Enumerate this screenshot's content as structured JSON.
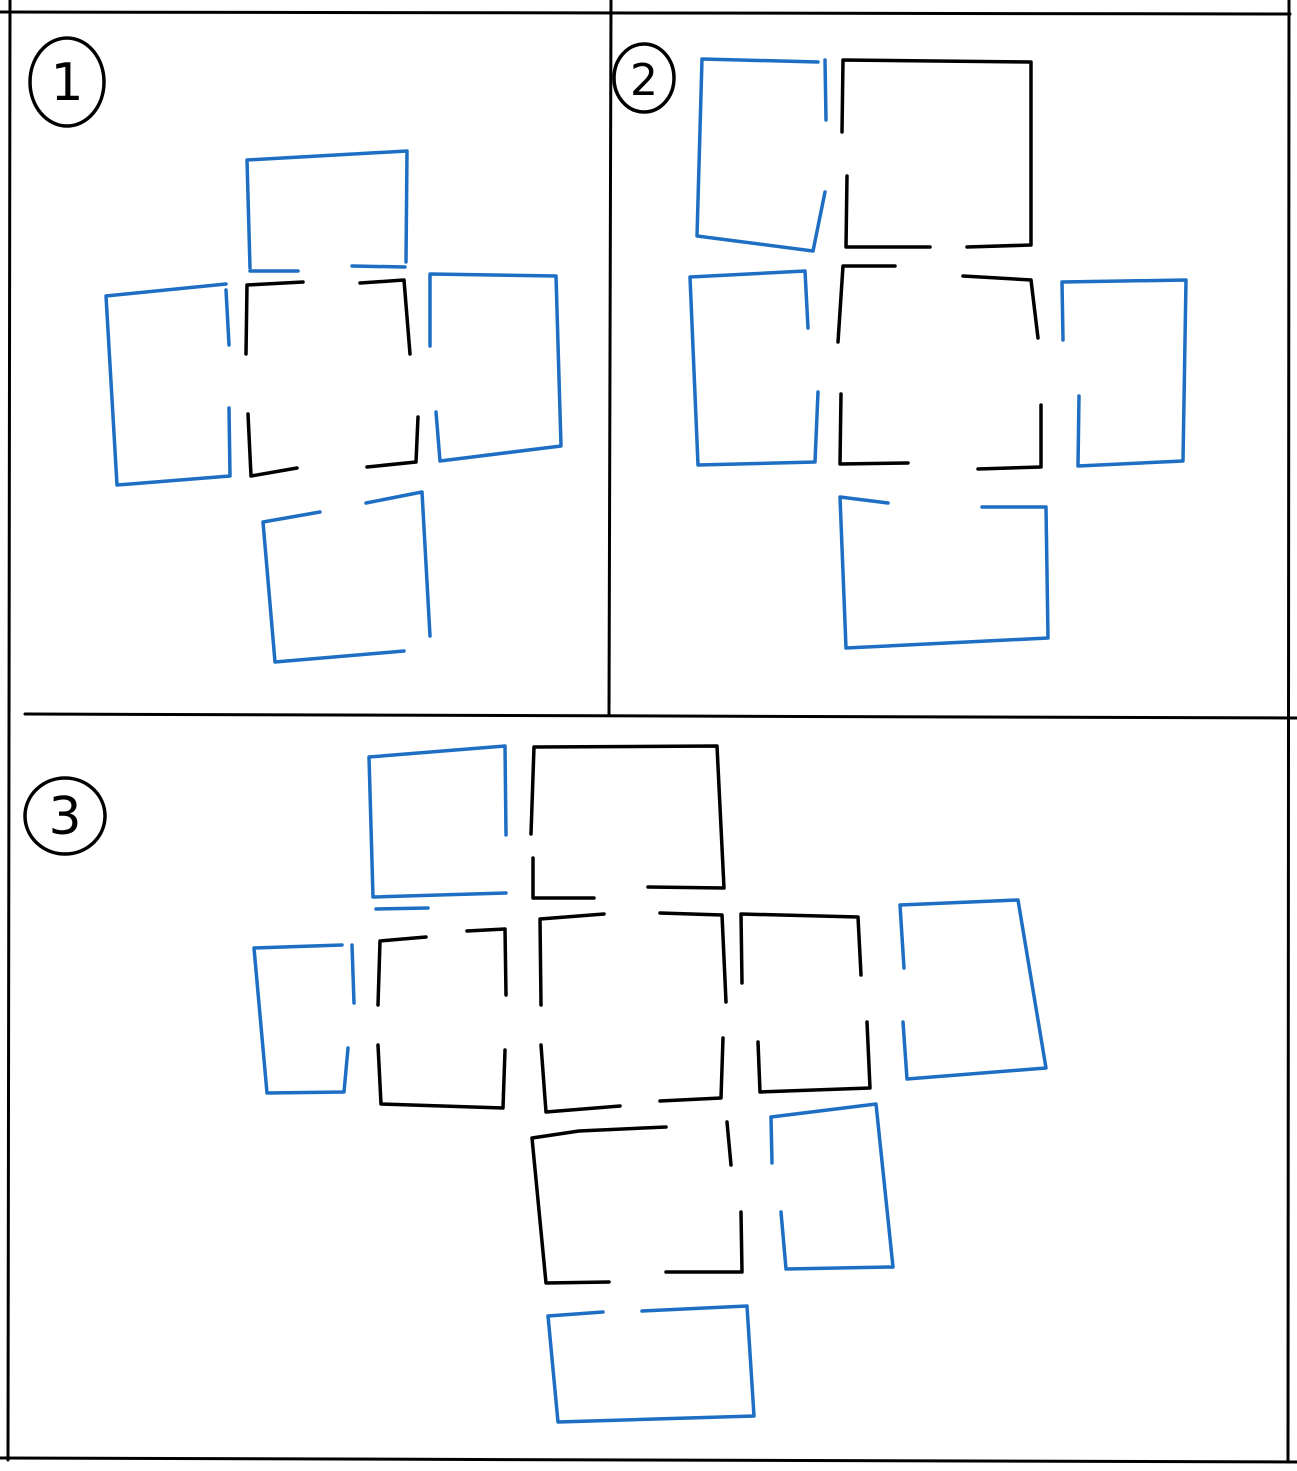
{
  "colors": {
    "existing": "#000000",
    "added": "#1e6fc4",
    "paper": "#ffffff"
  },
  "panels": [
    {
      "number": "1",
      "description_kind": "plus-shape: one black square with four blue squares attached"
    },
    {
      "number": "2",
      "description_kind": "3x2 arrangement with extra blue squares"
    },
    {
      "number": "3",
      "description_kind": "larger cluster of black squares surrounded by blue squares"
    }
  ]
}
